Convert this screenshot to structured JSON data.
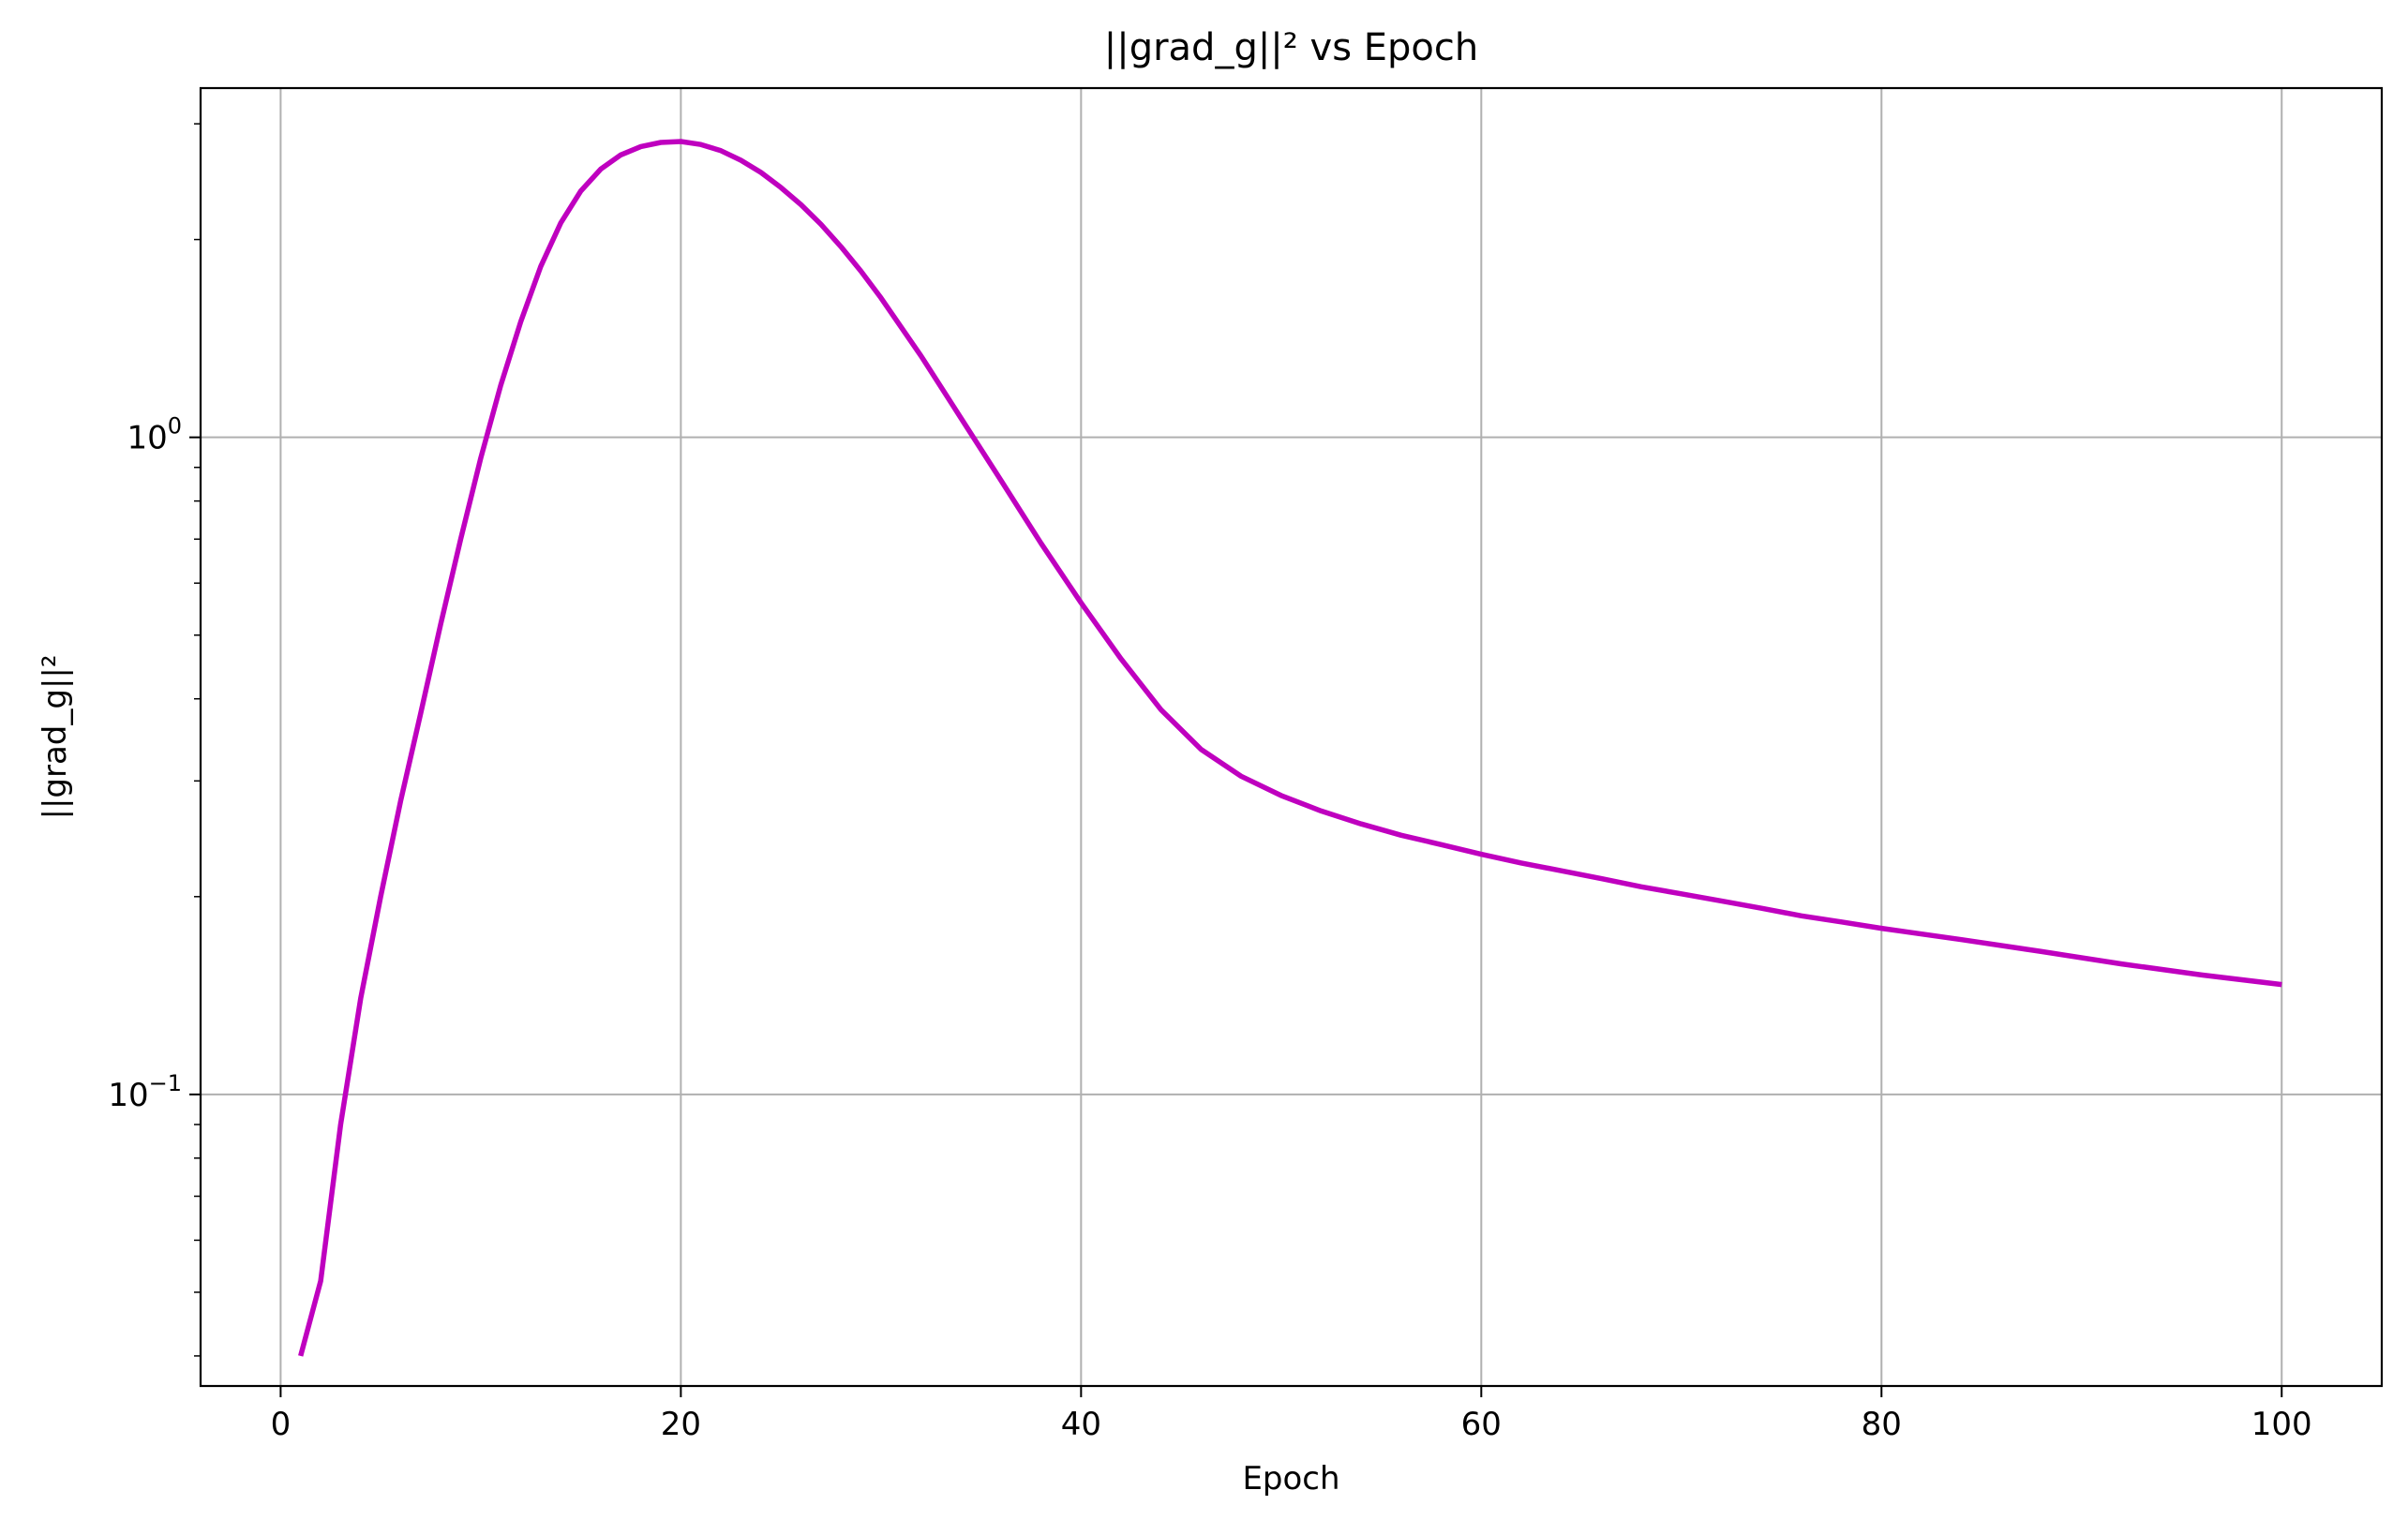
{
  "chart_data": {
    "type": "line",
    "title": "||grad_g||² vs Epoch",
    "xlabel": "Epoch",
    "ylabel": "||grad_g||²",
    "xlim": [
      -4,
      105
    ],
    "ylim": [
      0.036,
      3.4
    ],
    "yscale": "log",
    "grid": true,
    "x_ticks": [
      0,
      20,
      40,
      60,
      80,
      100
    ],
    "x_tick_labels": [
      "0",
      "20",
      "40",
      "60",
      "80",
      "100"
    ],
    "y_major_ticks": [
      0.1,
      1
    ],
    "y_tick_labels": [
      {
        "base": "10",
        "exp": "−1"
      },
      {
        "base": "10",
        "exp": "0"
      }
    ],
    "y_minor_ticks": [
      0.04,
      0.05,
      0.06,
      0.07,
      0.08,
      0.09,
      0.2,
      0.3,
      0.4,
      0.5,
      0.6,
      0.7,
      0.8,
      0.9,
      2,
      3
    ],
    "series": [
      {
        "color": "#bf00bf",
        "x": [
          1,
          2,
          3,
          4,
          5,
          6,
          7,
          8,
          9,
          10,
          11,
          12,
          13,
          14,
          15,
          16,
          17,
          18,
          19,
          20,
          21,
          22,
          23,
          24,
          25,
          26,
          27,
          28,
          29,
          30,
          32,
          34,
          36,
          38,
          40,
          42,
          44,
          46,
          48,
          50,
          52,
          54,
          56,
          58,
          60,
          62,
          64,
          66,
          68,
          70,
          72,
          74,
          76,
          78,
          80,
          84,
          88,
          92,
          96,
          100
        ],
        "y": [
          0.04,
          0.052,
          0.09,
          0.14,
          0.2,
          0.28,
          0.38,
          0.52,
          0.7,
          0.93,
          1.2,
          1.5,
          1.82,
          2.12,
          2.37,
          2.56,
          2.69,
          2.77,
          2.81,
          2.82,
          2.79,
          2.73,
          2.64,
          2.53,
          2.4,
          2.26,
          2.11,
          1.95,
          1.79,
          1.63,
          1.33,
          1.07,
          0.86,
          0.69,
          0.56,
          0.46,
          0.385,
          0.335,
          0.305,
          0.285,
          0.27,
          0.258,
          0.248,
          0.24,
          0.232,
          0.225,
          0.219,
          0.213,
          0.207,
          0.202,
          0.197,
          0.192,
          0.187,
          0.183,
          0.179,
          0.172,
          0.165,
          0.158,
          0.152,
          0.147
        ]
      }
    ]
  }
}
